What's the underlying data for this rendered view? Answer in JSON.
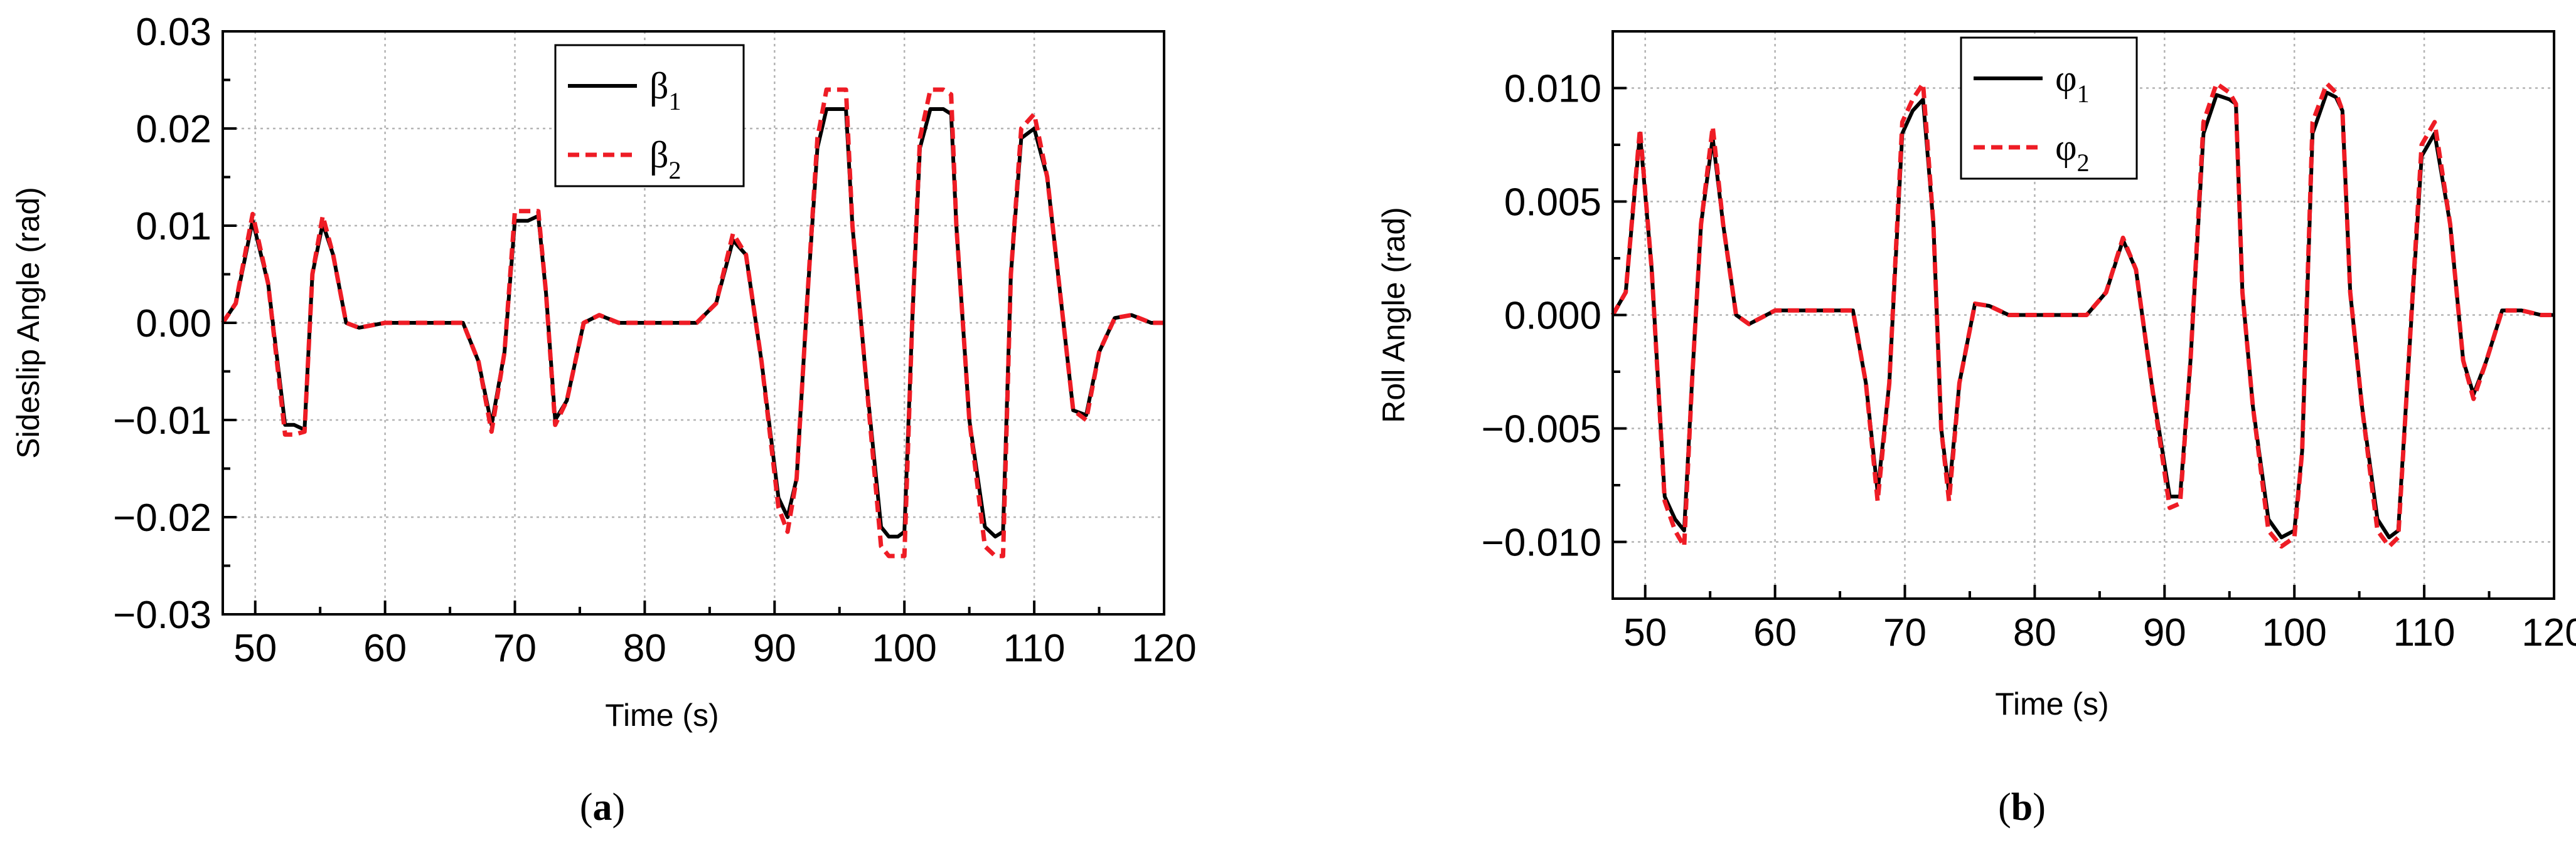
{
  "chart_data": [
    {
      "type": "line",
      "panel": "a",
      "caption": {
        "open": "(",
        "letter": "a",
        "close": ")"
      },
      "xlabel": "Time (s)",
      "ylabel": "Sideslip Angle (rad)",
      "xlim": [
        47.5,
        120
      ],
      "ylim": [
        -0.03,
        0.03
      ],
      "xticks": [
        50,
        60,
        70,
        80,
        90,
        100,
        110,
        120
      ],
      "xtick_labels": [
        "50",
        "60",
        "70",
        "80",
        "90",
        "100",
        "110",
        "120"
      ],
      "yticks": [
        -0.03,
        -0.02,
        -0.01,
        0.0,
        0.01,
        0.02,
        0.03
      ],
      "ytick_labels": [
        "−0.03",
        "−0.02",
        "−0.01",
        "0.00",
        "0.01",
        "0.02",
        "0.03"
      ],
      "grid": true,
      "legend_position": "top-center",
      "series": [
        {
          "name": "β1",
          "legend_symbol": "β",
          "legend_sub": "1",
          "color": "#000000",
          "style": "solid",
          "x": [
            47.5,
            48.5,
            49.8,
            51,
            52.3,
            53,
            53.8,
            54.4,
            55.2,
            56,
            57,
            58,
            60,
            62,
            64,
            66,
            67.2,
            68.2,
            69.2,
            70,
            71,
            71.8,
            72.4,
            73.1,
            74,
            75.3,
            76.5,
            78,
            80,
            82,
            84,
            85.5,
            86.8,
            87.8,
            89,
            90.3,
            91,
            91.7,
            92.5,
            93.3,
            94,
            95,
            95.5,
            96,
            97,
            98.2,
            98.8,
            99.5,
            100,
            100.6,
            101.2,
            102,
            103,
            103.6,
            104,
            105,
            106.2,
            107,
            107.6,
            108.2,
            109,
            110,
            111,
            112,
            113,
            114,
            115,
            116.2,
            117.5,
            119,
            120
          ],
          "y": [
            0,
            0.002,
            0.0105,
            0.004,
            -0.0105,
            -0.0105,
            -0.011,
            0.005,
            0.0102,
            0.007,
            0,
            -0.0005,
            0,
            0,
            0,
            0,
            -0.004,
            -0.0105,
            -0.003,
            0.0105,
            0.0105,
            0.011,
            0.003,
            -0.01,
            -0.008,
            0,
            0.0008,
            0,
            0,
            0,
            0,
            0.002,
            0.0085,
            0.007,
            -0.004,
            -0.018,
            -0.02,
            -0.016,
            0.002,
            0.018,
            0.022,
            0.022,
            0.022,
            0.01,
            -0.005,
            -0.021,
            -0.022,
            -0.022,
            -0.0215,
            0.0,
            0.018,
            0.022,
            0.022,
            0.0215,
            0.01,
            -0.01,
            -0.021,
            -0.022,
            -0.0215,
            0.005,
            0.019,
            0.02,
            0.015,
            0.003,
            -0.009,
            -0.0095,
            -0.003,
            0.0005,
            0.0008,
            0,
            0
          ]
        },
        {
          "name": "β2",
          "legend_symbol": "β",
          "legend_sub": "2",
          "color": "#ee1c25",
          "style": "dashed",
          "x": [
            47.5,
            48.5,
            49.8,
            51,
            52.3,
            53,
            53.8,
            54.4,
            55.2,
            56,
            57,
            58,
            60,
            62,
            64,
            66,
            67.2,
            68.2,
            69.2,
            70,
            71,
            71.8,
            72.4,
            73.1,
            74,
            75.3,
            76.5,
            78,
            80,
            82,
            84,
            85.5,
            86.8,
            87.8,
            89,
            90.3,
            91,
            91.7,
            92.5,
            93.3,
            94,
            95,
            95.5,
            96,
            97,
            98.2,
            98.8,
            99.5,
            100,
            100.6,
            101.2,
            102,
            103,
            103.6,
            104,
            105,
            106.2,
            107,
            107.6,
            108.2,
            109,
            110,
            111,
            112,
            113,
            114,
            115,
            116.2,
            117.5,
            119,
            120
          ],
          "y": [
            0,
            0.002,
            0.0112,
            0.004,
            -0.0115,
            -0.0115,
            -0.0112,
            0.005,
            0.011,
            0.007,
            0,
            -0.0005,
            0,
            0,
            0,
            0,
            -0.004,
            -0.0112,
            -0.003,
            0.0115,
            0.0115,
            0.0115,
            0.003,
            -0.0105,
            -0.008,
            0,
            0.0008,
            0,
            0,
            0,
            0,
            0.002,
            0.0092,
            0.007,
            -0.004,
            -0.019,
            -0.0215,
            -0.016,
            0.002,
            0.019,
            0.024,
            0.024,
            0.024,
            0.01,
            -0.005,
            -0.023,
            -0.024,
            -0.024,
            -0.024,
            0.0,
            0.019,
            0.024,
            0.024,
            0.0235,
            0.01,
            -0.01,
            -0.023,
            -0.024,
            -0.024,
            0.005,
            0.02,
            0.0215,
            0.015,
            0.003,
            -0.009,
            -0.01,
            -0.003,
            0.0005,
            0.0008,
            0,
            0
          ]
        }
      ]
    },
    {
      "type": "line",
      "panel": "b",
      "caption": {
        "open": "(",
        "letter": "b",
        "close": ")"
      },
      "xlabel": "Time (s)",
      "ylabel": "Roll Angle (rad)",
      "xlim": [
        47.5,
        120
      ],
      "ylim": [
        -0.0125,
        0.0125
      ],
      "xticks": [
        50,
        60,
        70,
        80,
        90,
        100,
        110,
        120
      ],
      "xtick_labels": [
        "50",
        "60",
        "70",
        "80",
        "90",
        "100",
        "110",
        "120"
      ],
      "yticks": [
        -0.01,
        -0.005,
        0.0,
        0.005,
        0.01
      ],
      "ytick_labels": [
        "−0.010",
        "−0.005",
        "0.000",
        "0.005",
        "0.010"
      ],
      "grid": true,
      "legend_position": "top-center",
      "series": [
        {
          "name": "φ1",
          "legend_symbol": "φ",
          "legend_sub": "1",
          "color": "#000000",
          "style": "solid",
          "x": [
            47.5,
            48.5,
            49.6,
            50.5,
            51.5,
            52.3,
            53,
            53.6,
            54.3,
            55.2,
            56,
            57,
            58,
            60,
            62,
            64,
            66,
            67,
            67.9,
            68.8,
            69.8,
            70.6,
            71.4,
            72.2,
            72.8,
            73.4,
            74.2,
            75.4,
            76.5,
            78,
            80,
            82,
            84,
            85.5,
            86.8,
            87.8,
            89,
            90.4,
            91.2,
            92,
            93,
            94,
            95,
            95.5,
            96,
            96.8,
            98,
            99,
            100,
            100.6,
            101.4,
            102.5,
            103.2,
            103.7,
            104.3,
            105.2,
            106.4,
            107.3,
            108,
            108.7,
            109.8,
            110.8,
            112,
            113,
            113.8,
            114.8,
            116,
            117.5,
            119,
            120
          ],
          "y": [
            0,
            0.001,
            0.008,
            0.002,
            -0.008,
            -0.009,
            -0.0095,
            -0.003,
            0.004,
            0.0078,
            0.004,
            0,
            -0.0004,
            0.0002,
            0.0002,
            0.0002,
            0.0002,
            -0.003,
            -0.0078,
            -0.003,
            0.008,
            0.009,
            0.0095,
            0.004,
            -0.005,
            -0.0078,
            -0.003,
            0.0005,
            0.0004,
            0,
            0,
            0,
            0,
            0.001,
            0.0033,
            0.002,
            -0.003,
            -0.008,
            -0.008,
            -0.002,
            0.008,
            0.0097,
            0.0095,
            0.0093,
            0.001,
            -0.004,
            -0.009,
            -0.0098,
            -0.0095,
            -0.006,
            0.008,
            0.0098,
            0.0096,
            0.009,
            0.001,
            -0.004,
            -0.009,
            -0.0098,
            -0.0095,
            -0.003,
            0.007,
            0.008,
            0.004,
            -0.002,
            -0.0035,
            -0.002,
            0.0002,
            0.0002,
            0,
            0
          ]
        },
        {
          "name": "φ2",
          "legend_symbol": "φ",
          "legend_sub": "2",
          "color": "#ee1c25",
          "style": "dashed",
          "x": [
            47.5,
            48.5,
            49.6,
            50.5,
            51.5,
            52.3,
            53,
            53.6,
            54.3,
            55.2,
            56,
            57,
            58,
            60,
            62,
            64,
            66,
            67,
            67.9,
            68.8,
            69.8,
            70.6,
            71.4,
            72.2,
            72.8,
            73.4,
            74.2,
            75.4,
            76.5,
            78,
            80,
            82,
            84,
            85.5,
            86.8,
            87.8,
            89,
            90.4,
            91.2,
            92,
            93,
            94,
            95,
            95.5,
            96,
            96.8,
            98,
            99,
            100,
            100.6,
            101.4,
            102.5,
            103.2,
            103.7,
            104.3,
            105.2,
            106.4,
            107.3,
            108,
            108.7,
            109.8,
            110.8,
            112,
            113,
            113.8,
            114.8,
            116,
            117.5,
            119,
            120
          ],
          "y": [
            0,
            0.001,
            0.0082,
            0.002,
            -0.0082,
            -0.0095,
            -0.0102,
            -0.003,
            0.004,
            0.0083,
            0.004,
            0,
            -0.0004,
            0.0002,
            0.0002,
            0.0002,
            0.0002,
            -0.003,
            -0.0082,
            -0.003,
            0.0085,
            0.0095,
            0.0102,
            0.004,
            -0.005,
            -0.0082,
            -0.003,
            0.0005,
            0.0004,
            0,
            0,
            0,
            0,
            0.001,
            0.0034,
            0.002,
            -0.003,
            -0.0085,
            -0.0083,
            -0.002,
            0.0085,
            0.0102,
            0.0098,
            0.0093,
            0.001,
            -0.004,
            -0.0095,
            -0.0102,
            -0.0098,
            -0.006,
            0.0085,
            0.0102,
            0.0098,
            0.009,
            0.001,
            -0.004,
            -0.0095,
            -0.0102,
            -0.0098,
            -0.003,
            0.0075,
            0.0085,
            0.004,
            -0.002,
            -0.0037,
            -0.002,
            0.0002,
            0.0002,
            0,
            0
          ]
        }
      ]
    }
  ]
}
